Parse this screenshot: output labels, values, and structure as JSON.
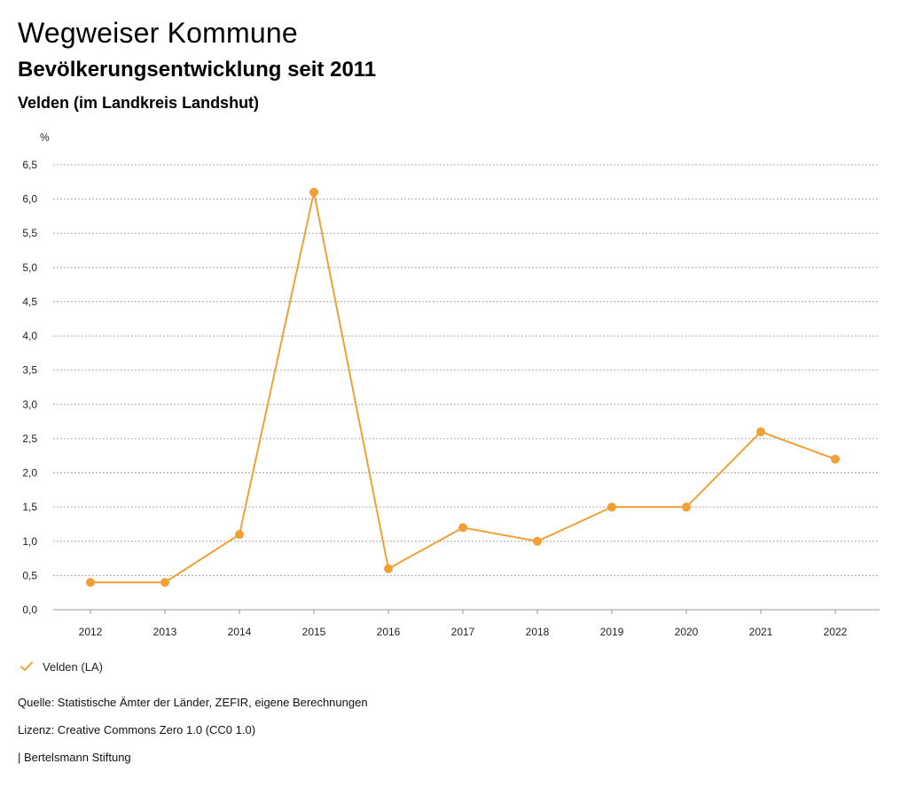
{
  "header": {
    "title": "Wegweiser Kommune",
    "subtitle": "Bevölkerungsentwicklung seit 2011",
    "region": "Velden (im Landkreis Landshut)"
  },
  "chart_data": {
    "type": "line",
    "title": "Bevölkerungsentwicklung seit 2011",
    "xlabel": "",
    "ylabel": "%",
    "categories": [
      "2012",
      "2013",
      "2014",
      "2015",
      "2016",
      "2017",
      "2018",
      "2019",
      "2020",
      "2021",
      "2022"
    ],
    "series": [
      {
        "name": "Velden (LA)",
        "color": "#f0a035",
        "values": [
          0.4,
          0.4,
          1.1,
          6.1,
          0.6,
          1.2,
          1.0,
          1.5,
          1.5,
          2.6,
          2.2
        ]
      }
    ],
    "ylim": [
      0,
      6.5
    ],
    "yticks": [
      "0,0",
      "0,5",
      "1,0",
      "1,5",
      "2,0",
      "2,5",
      "3,0",
      "3,5",
      "4,0",
      "4,5",
      "5,0",
      "5,5",
      "6,0",
      "6,5"
    ],
    "grid": true,
    "legend_position": "bottom-left"
  },
  "legend": {
    "label": "Velden (LA)"
  },
  "footer": {
    "source": "Quelle: Statistische Ämter der Länder, ZEFIR, eigene Berechnungen",
    "license": "Lizenz: Creative Commons Zero 1.0 (CC0 1.0)",
    "publisher": "| Bertelsmann Stiftung"
  }
}
